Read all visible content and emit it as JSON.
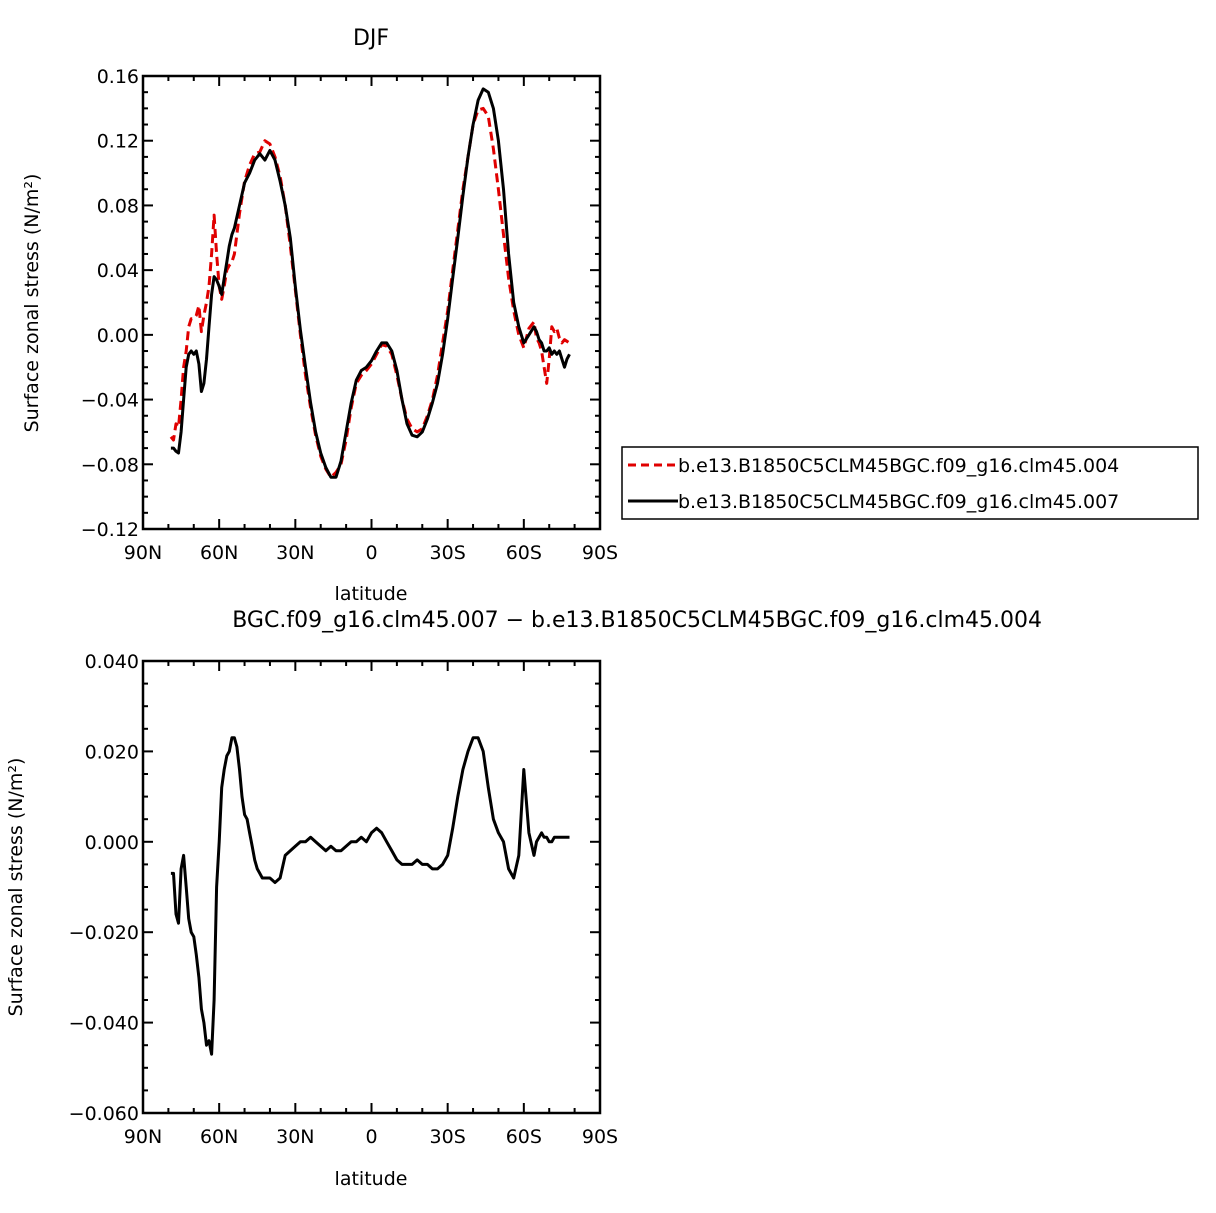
{
  "chart_data": [
    {
      "type": "line",
      "title": "DJF",
      "xlabel": "latitude",
      "ylabel": "Surface zonal stress (N/m²)",
      "xlim": [
        90,
        -90
      ],
      "ylim": [
        -0.12,
        0.16
      ],
      "xticks": [
        90,
        60,
        30,
        0,
        -30,
        -60,
        -90
      ],
      "xtick_labels": [
        "90N",
        "60N",
        "30N",
        "0",
        "30S",
        "60S",
        "90S"
      ],
      "yticks": [
        -0.12,
        -0.08,
        -0.04,
        0.0,
        0.04,
        0.08,
        0.12,
        0.16
      ],
      "ytick_labels": [
        "−0.12",
        "−0.08",
        "−0.04",
        "0.00",
        "0.04",
        "0.08",
        "0.12",
        "0.16"
      ],
      "legend": "right",
      "series": [
        {
          "name": "b.e13.B1850C5CLM45BGC.f09_g16.clm45.004",
          "color": "#e00000",
          "dash": true,
          "x": [
            79,
            78,
            77,
            76,
            75,
            74,
            73,
            72,
            71,
            70,
            69,
            68,
            67,
            66,
            65,
            64,
            63,
            62,
            61,
            60,
            59,
            58,
            57,
            56,
            55,
            54,
            52,
            50,
            48,
            46,
            44,
            42,
            40,
            38,
            36,
            34,
            32,
            30,
            28,
            26,
            24,
            22,
            20,
            18,
            16,
            14,
            12,
            10,
            8,
            6,
            4,
            2,
            0,
            -2,
            -4,
            -6,
            -8,
            -10,
            -12,
            -14,
            -16,
            -18,
            -20,
            -22,
            -24,
            -26,
            -28,
            -30,
            -32,
            -34,
            -36,
            -38,
            -40,
            -42,
            -44,
            -46,
            -48,
            -50,
            -52,
            -54,
            -56,
            -58,
            -60,
            -62,
            -64,
            -65,
            -66,
            -67,
            -68,
            -69,
            -70,
            -71,
            -72,
            -73,
            -74,
            -75,
            -76,
            -77,
            -78
          ],
          "y": [
            -0.063,
            -0.065,
            -0.055,
            -0.057,
            -0.04,
            -0.02,
            -0.01,
            0.005,
            0.01,
            0.01,
            0.012,
            0.018,
            0.002,
            0.012,
            0.02,
            0.03,
            0.05,
            0.074,
            0.05,
            0.03,
            0.022,
            0.03,
            0.04,
            0.043,
            0.045,
            0.05,
            0.075,
            0.095,
            0.105,
            0.112,
            0.113,
            0.12,
            0.118,
            0.11,
            0.098,
            0.08,
            0.055,
            0.028,
            0.0,
            -0.025,
            -0.045,
            -0.062,
            -0.075,
            -0.083,
            -0.088,
            -0.085,
            -0.08,
            -0.065,
            -0.045,
            -0.03,
            -0.025,
            -0.022,
            -0.018,
            -0.012,
            -0.006,
            -0.007,
            -0.012,
            -0.025,
            -0.04,
            -0.052,
            -0.058,
            -0.06,
            -0.058,
            -0.05,
            -0.04,
            -0.025,
            -0.005,
            0.015,
            0.04,
            0.065,
            0.09,
            0.11,
            0.13,
            0.139,
            0.14,
            0.135,
            0.115,
            0.09,
            0.062,
            0.035,
            0.015,
            0.0,
            -0.008,
            0.004,
            0.008,
            -0.002,
            -0.005,
            -0.01,
            -0.02,
            -0.03,
            -0.015,
            0.005,
            0.002,
            0.004,
            -0.002,
            -0.005,
            -0.003,
            -0.004,
            -0.005
          ]
        },
        {
          "name": "b.e13.B1850C5CLM45BGC.f09_g16.clm45.007",
          "color": "#000000",
          "dash": false,
          "x": [
            79,
            78,
            77,
            76,
            75,
            74,
            73,
            72,
            71,
            70,
            69,
            68,
            67,
            66,
            65,
            64,
            63,
            62,
            61,
            60,
            59,
            58,
            57,
            56,
            55,
            54,
            52,
            50,
            48,
            46,
            44,
            42,
            40,
            38,
            36,
            34,
            32,
            30,
            28,
            26,
            24,
            22,
            20,
            18,
            16,
            14,
            12,
            10,
            8,
            6,
            4,
            2,
            0,
            -2,
            -4,
            -6,
            -8,
            -10,
            -12,
            -14,
            -16,
            -18,
            -20,
            -22,
            -24,
            -26,
            -28,
            -30,
            -32,
            -34,
            -36,
            -38,
            -40,
            -42,
            -44,
            -46,
            -48,
            -50,
            -52,
            -54,
            -56,
            -58,
            -60,
            -62,
            -64,
            -65,
            -66,
            -67,
            -68,
            -69,
            -70,
            -71,
            -72,
            -73,
            -74,
            -75,
            -76,
            -77,
            -78
          ],
          "y": [
            -0.07,
            -0.07,
            -0.072,
            -0.073,
            -0.06,
            -0.04,
            -0.02,
            -0.012,
            -0.01,
            -0.012,
            -0.01,
            -0.018,
            -0.035,
            -0.03,
            -0.015,
            0.005,
            0.025,
            0.036,
            0.034,
            0.03,
            0.025,
            0.035,
            0.045,
            0.055,
            0.062,
            0.066,
            0.08,
            0.094,
            0.1,
            0.108,
            0.112,
            0.108,
            0.114,
            0.108,
            0.095,
            0.08,
            0.06,
            0.03,
            0.003,
            -0.02,
            -0.042,
            -0.06,
            -0.073,
            -0.082,
            -0.088,
            -0.088,
            -0.078,
            -0.06,
            -0.042,
            -0.028,
            -0.022,
            -0.02,
            -0.016,
            -0.01,
            -0.005,
            -0.005,
            -0.01,
            -0.022,
            -0.04,
            -0.055,
            -0.062,
            -0.063,
            -0.06,
            -0.052,
            -0.042,
            -0.03,
            -0.012,
            0.01,
            0.035,
            0.06,
            0.086,
            0.11,
            0.13,
            0.145,
            0.152,
            0.15,
            0.14,
            0.12,
            0.09,
            0.05,
            0.02,
            0.005,
            -0.005,
            0.0,
            0.005,
            0.002,
            -0.003,
            -0.005,
            -0.01,
            -0.01,
            -0.008,
            -0.012,
            -0.01,
            -0.012,
            -0.01,
            -0.015,
            -0.02,
            -0.015,
            -0.012
          ]
        }
      ]
    },
    {
      "type": "line",
      "title": "BGC.f09_g16.clm45.007 − b.e13.B1850C5CLM45BGC.f09_g16.clm45.004",
      "xlabel": "latitude",
      "ylabel": "Surface zonal stress (N/m²)",
      "xlim": [
        90,
        -90
      ],
      "ylim": [
        -0.06,
        0.04
      ],
      "xticks": [
        90,
        60,
        30,
        0,
        -30,
        -60,
        -90
      ],
      "xtick_labels": [
        "90N",
        "60N",
        "30N",
        "0",
        "30S",
        "60S",
        "90S"
      ],
      "yticks": [
        -0.06,
        -0.04,
        -0.02,
        0.0,
        0.02,
        0.04
      ],
      "ytick_labels": [
        "−0.060",
        "−0.040",
        "−0.020",
        "0.000",
        "0.020",
        "0.040"
      ],
      "series": [
        {
          "color": "#000000",
          "dash": false,
          "x": [
            79,
            78,
            77,
            76,
            75,
            74,
            73,
            72,
            71,
            70,
            69,
            68,
            67,
            66,
            65,
            64,
            63,
            62,
            61,
            60,
            59,
            58,
            57,
            56,
            55,
            54,
            53,
            52,
            51,
            50,
            49,
            48,
            47,
            46,
            45,
            44,
            43,
            42,
            40,
            38,
            36,
            34,
            32,
            30,
            28,
            26,
            24,
            22,
            20,
            18,
            16,
            14,
            12,
            10,
            8,
            6,
            4,
            2,
            0,
            -2,
            -4,
            -6,
            -8,
            -10,
            -12,
            -14,
            -16,
            -18,
            -20,
            -22,
            -24,
            -26,
            -28,
            -30,
            -32,
            -34,
            -36,
            -38,
            -40,
            -42,
            -44,
            -46,
            -48,
            -50,
            -52,
            -54,
            -56,
            -58,
            -60,
            -62,
            -64,
            -65,
            -66,
            -67,
            -68,
            -69,
            -70,
            -71,
            -72,
            -73,
            -74,
            -75,
            -76,
            -77,
            -78
          ],
          "y": [
            -0.007,
            -0.007,
            -0.016,
            -0.018,
            -0.006,
            -0.003,
            -0.01,
            -0.017,
            -0.02,
            -0.021,
            -0.025,
            -0.03,
            -0.037,
            -0.04,
            -0.045,
            -0.044,
            -0.047,
            -0.035,
            -0.01,
            0.0,
            0.012,
            0.016,
            0.019,
            0.02,
            0.023,
            0.023,
            0.021,
            0.016,
            0.01,
            0.006,
            0.005,
            0.002,
            -0.001,
            -0.004,
            -0.006,
            -0.007,
            -0.008,
            -0.008,
            -0.008,
            -0.009,
            -0.008,
            -0.003,
            -0.002,
            -0.001,
            0.0,
            0.0,
            0.001,
            0.0,
            -0.001,
            -0.002,
            -0.001,
            -0.002,
            -0.002,
            -0.001,
            0.0,
            0.0,
            0.001,
            0.0,
            0.002,
            0.003,
            0.002,
            0.0,
            -0.002,
            -0.004,
            -0.005,
            -0.005,
            -0.005,
            -0.004,
            -0.005,
            -0.005,
            -0.006,
            -0.006,
            -0.005,
            -0.003,
            0.003,
            0.01,
            0.016,
            0.02,
            0.023,
            0.023,
            0.02,
            0.012,
            0.005,
            0.002,
            0.0,
            -0.006,
            -0.008,
            -0.003,
            0.016,
            0.002,
            -0.003,
            0.0,
            0.001,
            0.002,
            0.001,
            0.001,
            0.0,
            0.0,
            0.001,
            0.001,
            0.001,
            0.001,
            0.001,
            0.001,
            0.001
          ]
        }
      ]
    }
  ]
}
